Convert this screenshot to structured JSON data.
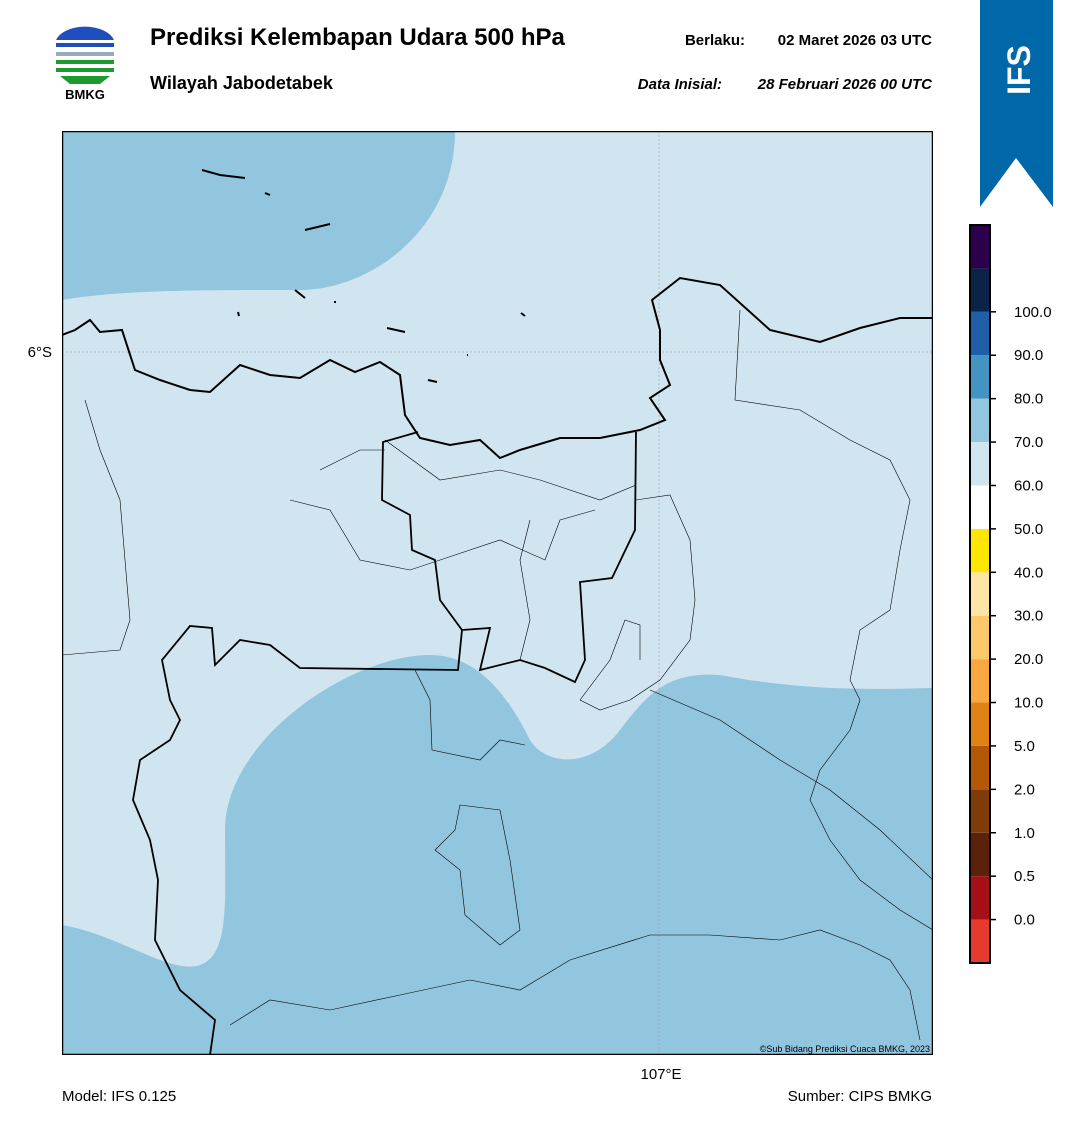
{
  "header": {
    "title": "Prediksi Kelembapan Udara 500 hPa",
    "subtitle": "Wilayah Jabodetabek",
    "valid_label": "Berlaku:",
    "valid_time": "02 Maret 2026 03 UTC",
    "init_label": "Data Inisial:",
    "init_time": "28 Februari 2026 00 UTC",
    "logo_text": "BMKG",
    "badge": "IFS"
  },
  "map": {
    "lat_label": "6°S",
    "lon_label": "107°E",
    "credit": "©Sub Bidang Prediksi Cuaca BMKG, 2023"
  },
  "colorbar": {
    "ticks": [
      "0.0",
      "0.5",
      "1.0",
      "2.0",
      "5.0",
      "10.0",
      "20.0",
      "30.0",
      "40.0",
      "50.0",
      "60.0",
      "70.0",
      "80.0",
      "90.0",
      "100.0"
    ],
    "colors": [
      "#e8392e",
      "#a50f15",
      "#5a220a",
      "#7f3b08",
      "#b35806",
      "#e08214",
      "#f9a840",
      "#fdc86a",
      "#fee5a5",
      "#ffe600",
      "#ffffff",
      "#d1e5f0",
      "#92c5de",
      "#4393c3",
      "#1f5fa8",
      "#0a2346",
      "#2d004b"
    ]
  },
  "footer": {
    "model": "Model: IFS 0.125",
    "source": "Sumber: CIPS BMKG"
  }
}
